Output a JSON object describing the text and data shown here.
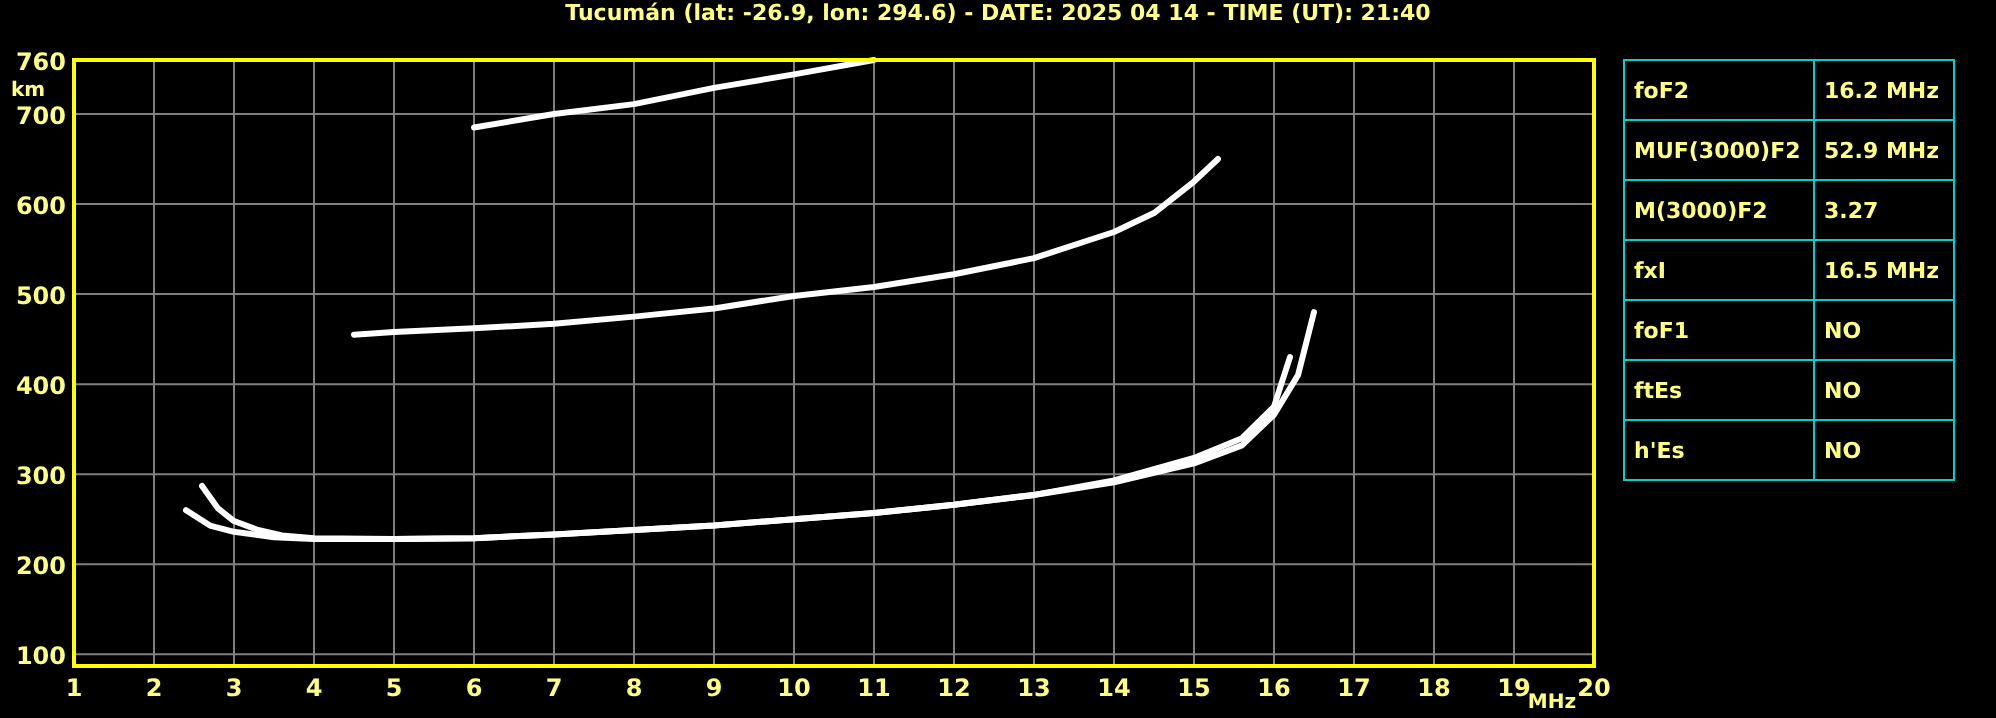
{
  "chart_data": [
    {
      "type": "line",
      "title": "Tucumán (lat: -26.9, lon: 294.6) - DATE: 2025 04 14 - TIME (UT): 21:40",
      "xlabel": "MHz",
      "ylabel": "km",
      "xlim": [
        1,
        20
      ],
      "ylim": [
        87,
        760
      ],
      "xticks": [
        1,
        2,
        3,
        4,
        5,
        6,
        7,
        8,
        9,
        10,
        11,
        12,
        13,
        14,
        15,
        16,
        17,
        18,
        19,
        20
      ],
      "yticks": [
        100,
        200,
        300,
        400,
        500,
        600,
        700,
        760
      ],
      "grid": true,
      "marker": "none",
      "line_style": "solid",
      "series": [
        {
          "color": "#ffffff",
          "x": [
            2.4,
            2.7,
            3,
            3.5,
            4,
            5,
            6,
            7,
            8,
            9,
            10,
            11,
            12,
            13,
            14,
            15,
            15.6,
            16,
            16.2
          ],
          "values": [
            260,
            243,
            236,
            230,
            228,
            228,
            229,
            233,
            238,
            243,
            250,
            257,
            266,
            277,
            293,
            318,
            340,
            375,
            430
          ]
        },
        {
          "color": "#ffffff",
          "x": [
            2.6,
            2.8,
            3,
            3.3,
            3.6,
            4,
            5,
            6,
            7,
            8,
            9,
            10,
            11,
            12,
            13,
            14,
            15,
            15.6,
            16,
            16.3,
            16.5
          ],
          "values": [
            287,
            262,
            248,
            238,
            232,
            229,
            228,
            229,
            233,
            238,
            243,
            250,
            257,
            266,
            277,
            291,
            312,
            332,
            366,
            410,
            480
          ]
        },
        {
          "color": "#ffffff",
          "x": [
            4.5,
            5,
            6,
            7,
            8,
            9,
            10,
            11,
            12,
            13,
            14,
            14.5,
            15,
            15.3
          ],
          "values": [
            455,
            458,
            462,
            467,
            475,
            484,
            498,
            508,
            522,
            540,
            569,
            590,
            625,
            650
          ]
        },
        {
          "color": "#ffffff",
          "x": [
            6,
            7,
            8,
            9,
            10,
            11
          ],
          "values": [
            685,
            700,
            711,
            729,
            744,
            760
          ]
        }
      ]
    },
    {
      "type": "other",
      "y_categories": [
        "foF2",
        "MUF(3000)F2",
        "M(3000)F2",
        "fxI",
        "foF1",
        "ftEs",
        "h'Es"
      ],
      "cell_labels": [
        [
          "16.2 MHz"
        ],
        [
          "52.9 MHz"
        ],
        [
          "3.27"
        ],
        [
          "16.5 MHz"
        ],
        [
          "NO"
        ],
        [
          "NO"
        ],
        [
          "NO"
        ]
      ]
    }
  ]
}
